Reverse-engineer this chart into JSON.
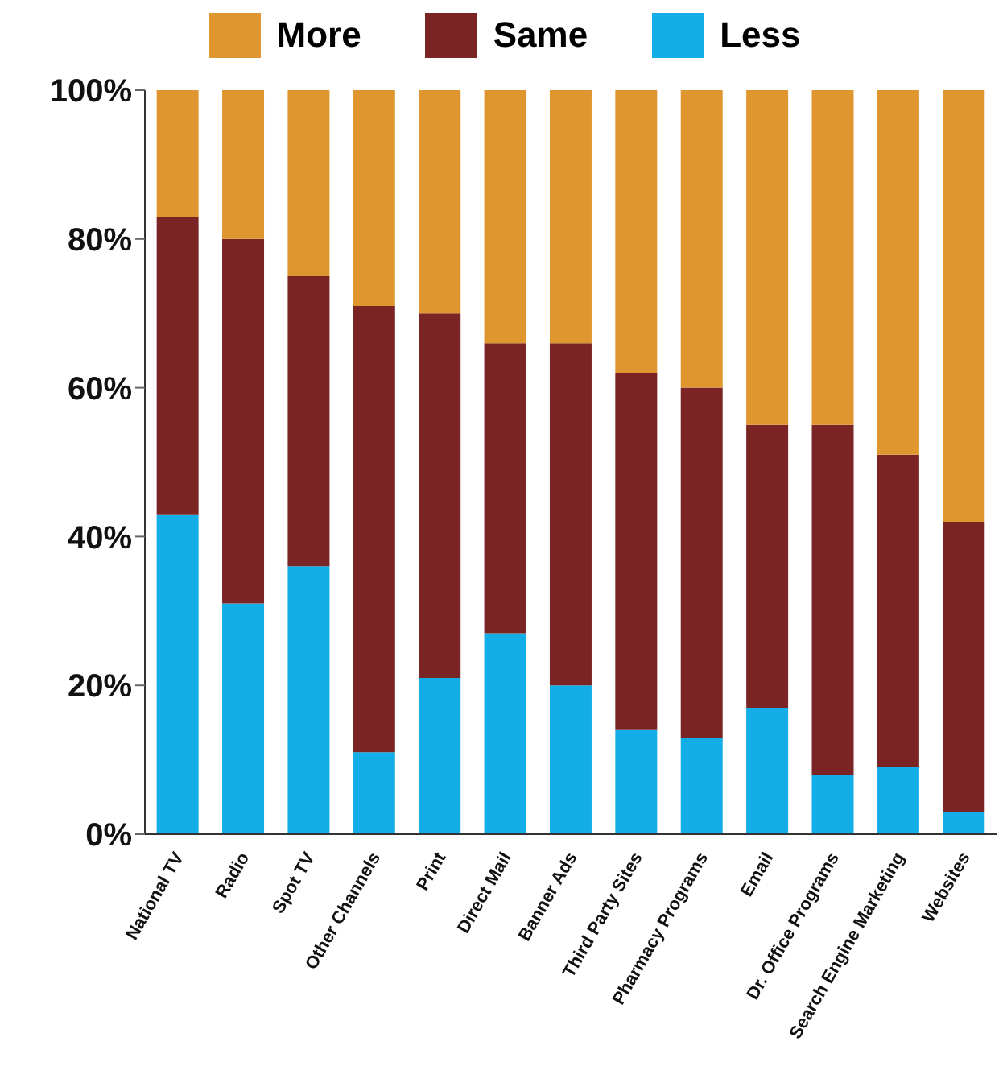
{
  "chart_data": {
    "type": "bar",
    "stacked": true,
    "categories": [
      "National TV",
      "Radio",
      "Spot TV",
      "Other Channels",
      "Print",
      "Direct Mail",
      "Banner Ads",
      "Third Party Sites",
      "Pharmacy Programs",
      "Email",
      "Dr. Office Programs",
      "Search Engine Marketing",
      "Websites"
    ],
    "series": [
      {
        "name": "Less",
        "color": "#13aee8",
        "values": [
          43,
          31,
          36,
          11,
          21,
          27,
          20,
          14,
          13,
          17,
          8,
          9,
          3
        ]
      },
      {
        "name": "Same",
        "color": "#7a2424",
        "values": [
          40,
          49,
          39,
          60,
          49,
          39,
          46,
          48,
          47,
          38,
          47,
          42,
          39
        ]
      },
      {
        "name": "More",
        "color": "#e0962f",
        "values": [
          17,
          20,
          25,
          29,
          30,
          34,
          34,
          38,
          40,
          45,
          45,
          49,
          58
        ]
      }
    ],
    "ylim": [
      0,
      100
    ],
    "yticks": [
      {
        "value": 0,
        "label": "0%"
      },
      {
        "value": 20,
        "label": "20%"
      },
      {
        "value": 40,
        "label": "40%"
      },
      {
        "value": 60,
        "label": "60%"
      },
      {
        "value": 80,
        "label": "80%"
      },
      {
        "value": 100,
        "label": "100%"
      }
    ],
    "grid": false,
    "legend": "top"
  }
}
